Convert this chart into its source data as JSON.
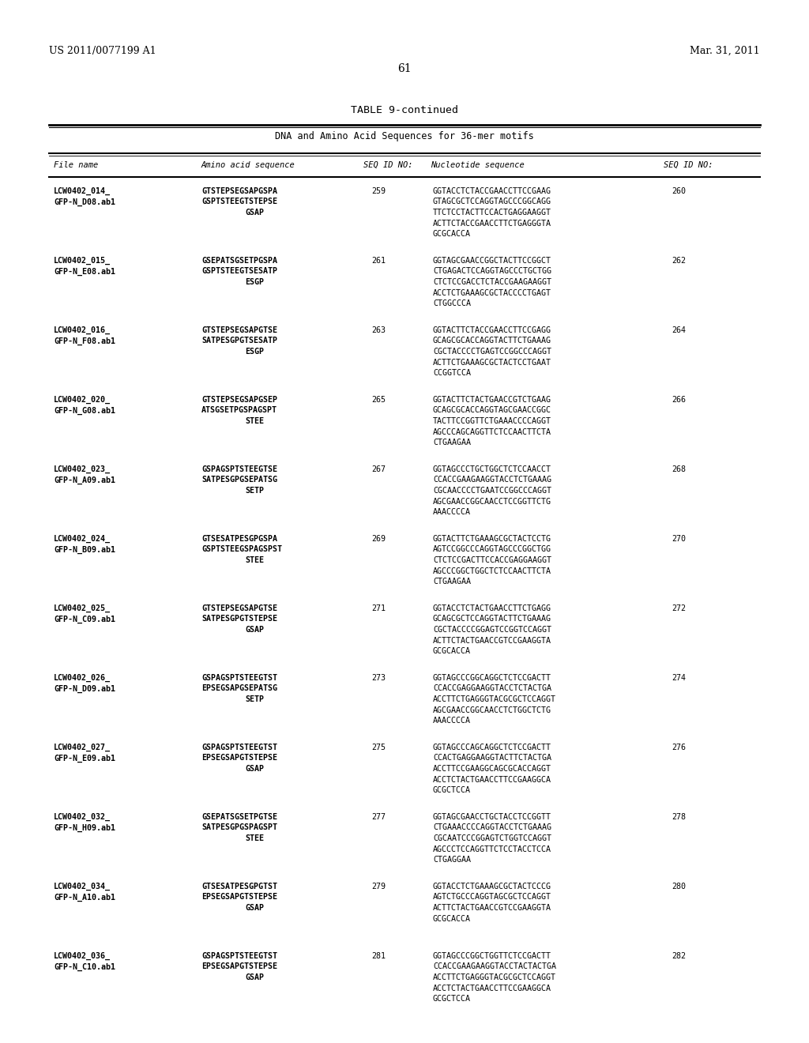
{
  "header_left": "US 2011/0077199 A1",
  "header_right": "Mar. 31, 2011",
  "page_number": "61",
  "table_title": "TABLE 9-continued",
  "table_subtitle": "DNA and Amino Acid Sequences for 36-mer motifs",
  "entries": [
    {
      "file_name": "LCW0402_014_",
      "gpfn": "GFP-N_D08.ab1",
      "aa1": "GTSTEPSEGSAPGSPA",
      "aa2": "GSPTSTEEGTSTEPSE",
      "aa3": "GSAP",
      "seq_id_aa": "259",
      "nuc": [
        "GGTACCTCTACCGAACCTTCCGAAG",
        "GTAGCGCTCCAGGTAGCCCGGCAGG",
        "TTCTCCTACTTCCACTGAGGAAGGT",
        "ACTTCTACCGAACCTTCTGAGGGTA",
        "GCGCACCA"
      ],
      "seq_id_nuc": "260"
    },
    {
      "file_name": "LCW0402_015_",
      "gpfn": "GFP-N_E08.ab1",
      "aa1": "GSEPATSGSETPGSPA",
      "aa2": "GSPTSTEEGTSESATP",
      "aa3": "ESGP",
      "seq_id_aa": "261",
      "nuc": [
        "GGTAGCGAACCGGCTACTTCCGGCT",
        "CTGAGACTCCAGGTAGCCCTGCTGG",
        "CTCTCCGACCTCTACCGAAGAAGGT",
        "ACCTCTGAAAGCGCTACCCCTGAGT",
        "CTGGCCCA"
      ],
      "seq_id_nuc": "262"
    },
    {
      "file_name": "LCW0402_016_",
      "gpfn": "GFP-N_F08.ab1",
      "aa1": "GTSTEPSEGSAPGTSE",
      "aa2": "SATPESGPGTSESATP",
      "aa3": "ESGP",
      "seq_id_aa": "263",
      "nuc": [
        "GGTACTTCTACCGAACCTTCCGAGG",
        "GCAGCGCACCAGGTACTTCTGAAAG",
        "CGCTACCCCTGAGTCCGGCCCAGGT",
        "ACTTCTGAAAGCGCTACTCCTGAAT",
        "CCGGTCCA"
      ],
      "seq_id_nuc": "264"
    },
    {
      "file_name": "LCW0402_020_",
      "gpfn": "GFP-N_G08.ab1",
      "aa1": "GTSTEPSEGSAPGSEP",
      "aa2": "ATSGSETPGSPAGSPT",
      "aa3": "STEE",
      "seq_id_aa": "265",
      "nuc": [
        "GGTACTTCTACTGAACCGTCTGAAG",
        "GCAGCGCACCAGGTAGCGAACCGGC",
        "TACTTCCGGTTCTGAAACCCCAGGT",
        "AGCCCAGCAGGTTCTCCAACTTCTA",
        "CTGAAGAA"
      ],
      "seq_id_nuc": "266"
    },
    {
      "file_name": "LCW0402_023_",
      "gpfn": "GFP-N_A09.ab1",
      "aa1": "GSPAGSPTSTEEGTSE",
      "aa2": "SATPESGPGSEPATSG",
      "aa3": "SETP",
      "seq_id_aa": "267",
      "nuc": [
        "GGTAGCCCTGCTGGCTCTCCAACCT",
        "CCACCGAAGAAGGTACCTCTGAAAG",
        "CGCAACCCCTGAATCCGGCCCAGGT",
        "AGCGAACCGGCAACCTCCGGTTCTG",
        "AAACCCCA"
      ],
      "seq_id_nuc": "268"
    },
    {
      "file_name": "LCW0402_024_",
      "gpfn": "GFP-N_B09.ab1",
      "aa1": "GTSESATPESGPGSPA",
      "aa2": "GSPTSTEEGSPAGSPST",
      "aa3": "STEE",
      "seq_id_aa": "269",
      "nuc": [
        "GGTACTTCTGAAAGCGCTACTCCTG",
        "AGTCCGGCCCAGGTAGCCCGGCTGG",
        "CTCTCCGACTTCCACCGAGGAAGGT",
        "AGCCCGGCTGGCTCTCCAACTTCTA",
        "CTGAAGAA"
      ],
      "seq_id_nuc": "270"
    },
    {
      "file_name": "LCW0402_025_",
      "gpfn": "GFP-N_C09.ab1",
      "aa1": "GTSTEPSEGSAPGTSE",
      "aa2": "SATPESGPGTSTEPSE",
      "aa3": "GSAP",
      "seq_id_aa": "271",
      "nuc": [
        "GGTACCTCTACTGAACCTTCTGAGG",
        "GCAGCGCTCCAGGTACTTCTGAAAG",
        "CGCTACCCCGGAGTCCGGTCCAGGT",
        "ACTTCTACTGAACCGTCCGAAGGTA",
        "GCGCACCA"
      ],
      "seq_id_nuc": "272"
    },
    {
      "file_name": "LCW0402_026_",
      "gpfn": "GFP-N_D09.ab1",
      "aa1": "GSPAGSPTSTEEGTST",
      "aa2": "EPSEGSAPGSEPATSG",
      "aa3": "SETP",
      "seq_id_aa": "273",
      "nuc": [
        "GGTAGCCCGGCAGGCTCTCCGACTT",
        "CCACCGAGGAAGGTACCTCTACTGA",
        "ACCTTCTGAGGGTACGCGCTCCAGGT",
        "AGCGAACCGGCAACCTCTGGCTCTG",
        "AAACCCCA"
      ],
      "seq_id_nuc": "274"
    },
    {
      "file_name": "LCW0402_027_",
      "gpfn": "GFP-N_E09.ab1",
      "aa1": "GSPAGSPTSTEEGTST",
      "aa2": "EPSEGSAPGTSTEPSE",
      "aa3": "GSAP",
      "seq_id_aa": "275",
      "nuc": [
        "GGTAGCCCAGCAGGCTCTCCGACTT",
        "CCACTGAGGAAGGTACTTCTACTGA",
        "ACCTTCCGAAGGCAGCGCACCAGGT",
        "ACCTCTACTGAACCTTCCGAAGGCA",
        "GCGCTCCA"
      ],
      "seq_id_nuc": "276"
    },
    {
      "file_name": "LCW0402_032_",
      "gpfn": "GFP-N_H09.ab1",
      "aa1": "GSEPATSGSETPGTSE",
      "aa2": "SATPESGPGSPAGSPT",
      "aa3": "STEE",
      "seq_id_aa": "277",
      "nuc": [
        "GGTAGCGAACCTGCTACCTCCGGTT",
        "CTGAAACCCCAGGTACCTCTGAAAG",
        "CGCAATCCCGGAGTCTGGTCCAGGT",
        "AGCCCTCCAGGTTCTCCTACCTCCA",
        "CTGAGGAA"
      ],
      "seq_id_nuc": "278"
    },
    {
      "file_name": "LCW0402_034_",
      "gpfn": "GFP-N_A10.ab1",
      "aa1": "GTSESATPESGPGTST",
      "aa2": "EPSEGSAPGTSTEPSE",
      "aa3": "GSAP",
      "seq_id_aa": "279",
      "nuc": [
        "GGTACCTCTGAAAGCGCTACTCCCG",
        "AGTCTGCCCAGGTAGCGCTCCAGGT",
        "ACTTCTACTGAACCGTCCGAAGGTA",
        "GCGCACCA",
        ""
      ],
      "seq_id_nuc": "280"
    },
    {
      "file_name": "LCW0402_036_",
      "gpfn": "GFP-N_C10.ab1",
      "aa1": "GSPAGSPTSTEEGTST",
      "aa2": "EPSEGSAPGTSTEPSE",
      "aa3": "GSAP",
      "seq_id_aa": "281",
      "nuc": [
        "GGTAGCCCGGCTGGTTCTCCGACTT",
        "CCACCGAAGAAGGTACCTACTACTGA",
        "ACCTTCTGAGGGTACGCGCTCCAGGT",
        "ACCTCTACTGAACCTTCCGAAGGCA",
        "GCGCTCCA"
      ],
      "seq_id_nuc": "282"
    }
  ],
  "bg_color": "#ffffff",
  "text_color": "#000000"
}
